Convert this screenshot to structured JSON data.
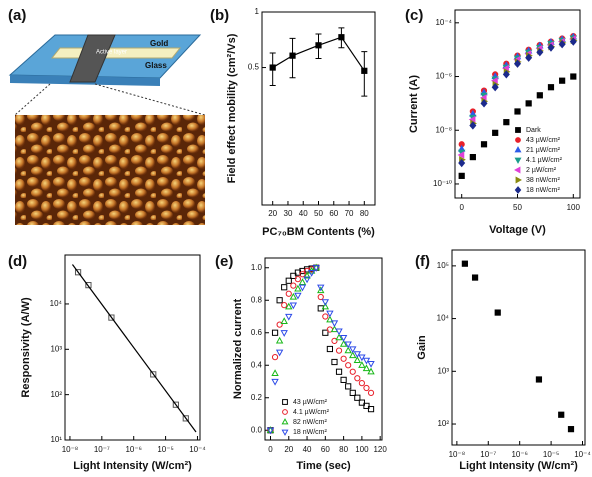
{
  "panel_a": {
    "label": "(a)",
    "active": "Active layer",
    "gold": "Gold",
    "glass": "Glass"
  },
  "chart_data": [
    {
      "type": "scatter",
      "panel_label": "(b)",
      "x_label": "PC₇₀BM Contents (%)",
      "y_label": "Field effect mobility (cm²/Vs)",
      "x": [
        20,
        33,
        50,
        65,
        80
      ],
      "xlim": [
        13,
        87
      ],
      "xticks": [
        20,
        30,
        40,
        50,
        60,
        70,
        80
      ],
      "ylog": true,
      "ylim": [
        0.09,
        1
      ],
      "yticks": [
        0.5,
        1
      ],
      "series": [
        {
          "color": "#000000",
          "marker": "square",
          "filled": true,
          "connect": true,
          "values": [
            0.5,
            0.58,
            0.66,
            0.73,
            0.48
          ],
          "errors": [
            0.1,
            0.14,
            0.1,
            0.09,
            0.13
          ]
        }
      ]
    },
    {
      "type": "scatter",
      "panel_label": "(c)",
      "x_label": "Voltage (V)",
      "y_label": "Current (A)",
      "x": [
        0,
        10,
        20,
        30,
        40,
        50,
        60,
        70,
        80,
        90,
        100
      ],
      "xlim": [
        -6,
        106
      ],
      "xticks": [
        0,
        50,
        100
      ],
      "ylog": true,
      "ylim": [
        3e-11,
        0.0003
      ],
      "yticks": [
        {
          "value": 1e-10,
          "label": "10⁻¹⁰"
        },
        {
          "value": 1e-08,
          "label": "10⁻⁸"
        },
        {
          "value": 1e-06,
          "label": "10⁻⁶"
        },
        {
          "value": 0.0001,
          "label": "10⁻⁴"
        }
      ],
      "legend": "lower right",
      "series": [
        {
          "name": "Dark",
          "color": "#000000",
          "marker": "square",
          "filled": true,
          "values": [
            2e-10,
            1e-09,
            3e-09,
            8e-09,
            2e-08,
            5e-08,
            1e-07,
            2e-07,
            4e-07,
            7e-07,
            1e-06
          ]
        },
        {
          "name": "43 µW/cm²",
          "color": "#e8202a",
          "marker": "circle",
          "filled": true,
          "values": [
            3e-09,
            5e-08,
            3e-07,
            1.2e-06,
            3e-06,
            6e-06,
            1e-05,
            1.5e-05,
            2e-05,
            2.6e-05,
            3.2e-05
          ]
        },
        {
          "name": "21 µW/cm²",
          "color": "#2d5be8",
          "marker": "triangle",
          "filled": true,
          "values": [
            2e-09,
            4e-08,
            2.5e-07,
            1e-06,
            2.6e-06,
            5.5e-06,
            9e-06,
            1.4e-05,
            1.9e-05,
            2.4e-05,
            3e-05
          ]
        },
        {
          "name": "4.1 µW/cm²",
          "color": "#1a9c8c",
          "marker": "down",
          "filled": true,
          "values": [
            1.5e-09,
            3e-08,
            2e-07,
            8e-07,
            2.2e-06,
            4.8e-06,
            8e-06,
            1.2e-05,
            1.7e-05,
            2.2e-05,
            2.7e-05
          ]
        },
        {
          "name": "2 µW/cm²",
          "color": "#e040d8",
          "marker": "left",
          "filled": true,
          "values": [
            1.2e-09,
            2.5e-08,
            1.6e-07,
            7e-07,
            2e-06,
            4.2e-06,
            7e-06,
            1.1e-05,
            1.5e-05,
            2e-05,
            2.5e-05
          ]
        },
        {
          "name": "38 nW/cm²",
          "color": "#8a8a10",
          "marker": "right",
          "filled": true,
          "values": [
            8e-10,
            1.8e-08,
            1.2e-07,
            5e-07,
            1.5e-06,
            3.5e-06,
            6e-06,
            9e-06,
            1.3e-05,
            1.8e-05,
            2.2e-05
          ]
        },
        {
          "name": "18 nW/cm²",
          "color": "#1c2a8c",
          "marker": "diamond",
          "filled": true,
          "values": [
            6e-10,
            1.5e-08,
            1e-07,
            4e-07,
            1.2e-06,
            3e-06,
            5e-06,
            8e-06,
            1.2e-05,
            1.6e-05,
            2e-05
          ]
        }
      ]
    },
    {
      "type": "scatter",
      "panel_label": "(d)",
      "x_label": "Light Intensity (W/cm²)",
      "y_label": "Responsivity (A/W)",
      "x": [
        1.8e-08,
        3.8e-08,
        2e-07,
        4.1e-06,
        2.1e-05,
        4.3e-05
      ],
      "xlog": true,
      "xlim": [
        7e-09,
        0.00012
      ],
      "xticks": [
        {
          "value": 1e-08,
          "label": "10⁻⁸"
        },
        {
          "value": 1e-07,
          "label": "10⁻⁷"
        },
        {
          "value": 1e-06,
          "label": "10⁻⁶"
        },
        {
          "value": 1e-05,
          "label": "10⁻⁵"
        },
        {
          "value": 0.0001,
          "label": "10⁻⁴"
        }
      ],
      "ylog": true,
      "ylim": [
        10,
        120000.0
      ],
      "yticks": [
        {
          "value": 10,
          "label": "10¹"
        },
        {
          "value": 100,
          "label": "10²"
        },
        {
          "value": 1000,
          "label": "10³"
        },
        {
          "value": 10000,
          "label": "10⁴"
        }
      ],
      "series": [
        {
          "color": "#555555",
          "marker": "square",
          "filled": false,
          "values": [
            50000.0,
            26000.0,
            5000.0,
            280.0,
            60.0,
            30.0
          ]
        },
        {
          "color": "#000000",
          "line": true,
          "x": [
            1.2e-08,
            9e-05
          ],
          "values": [
            74000.0,
            15
          ]
        }
      ]
    },
    {
      "type": "scatter",
      "panel_label": "(e)",
      "x_label": "Time (sec)",
      "y_label": "Normalized current",
      "x": [
        0,
        5,
        10,
        15,
        20,
        25,
        30,
        35,
        40,
        45,
        50,
        55,
        60,
        65,
        70,
        75,
        80,
        85,
        90,
        95,
        100,
        105,
        110
      ],
      "xlim": [
        -6,
        122
      ],
      "xticks": [
        0,
        20,
        40,
        60,
        80,
        100,
        120
      ],
      "ylim": [
        -0.06,
        1.06
      ],
      "yticks": [
        {
          "value": 0,
          "label": "0.0"
        },
        {
          "value": 0.2,
          "label": "0.2"
        },
        {
          "value": 0.4,
          "label": "0.4"
        },
        {
          "value": 0.6,
          "label": "0.6"
        },
        {
          "value": 0.8,
          "label": "0.8"
        },
        {
          "value": 1,
          "label": "1.0"
        }
      ],
      "legend": "lower center",
      "series": [
        {
          "name": "43 µW/cm²",
          "color": "#000000",
          "marker": "square",
          "filled": false,
          "values": [
            0,
            0.6,
            0.8,
            0.88,
            0.92,
            0.95,
            0.97,
            0.98,
            0.99,
            0.995,
            1,
            0.75,
            0.6,
            0.5,
            0.42,
            0.36,
            0.31,
            0.27,
            0.23,
            0.2,
            0.17,
            0.15,
            0.13
          ]
        },
        {
          "name": "4.1 µW/cm²",
          "color": "#e8202a",
          "marker": "circle",
          "filled": false,
          "values": [
            0,
            0.45,
            0.65,
            0.77,
            0.84,
            0.89,
            0.93,
            0.96,
            0.98,
            0.99,
            1,
            0.82,
            0.7,
            0.62,
            0.55,
            0.49,
            0.44,
            0.4,
            0.36,
            0.32,
            0.29,
            0.26,
            0.23
          ]
        },
        {
          "name": "82 nW/cm²",
          "color": "#18b818",
          "marker": "triangle",
          "filled": false,
          "values": [
            0,
            0.35,
            0.55,
            0.67,
            0.76,
            0.82,
            0.87,
            0.91,
            0.95,
            0.98,
            1,
            0.86,
            0.76,
            0.68,
            0.62,
            0.57,
            0.53,
            0.49,
            0.46,
            0.43,
            0.4,
            0.38,
            0.36
          ]
        },
        {
          "name": "18 nW/cm²",
          "color": "#2d4be8",
          "marker": "down",
          "filled": false,
          "values": [
            0,
            0.3,
            0.48,
            0.6,
            0.7,
            0.77,
            0.83,
            0.88,
            0.93,
            0.97,
            1,
            0.88,
            0.79,
            0.72,
            0.66,
            0.61,
            0.57,
            0.53,
            0.5,
            0.47,
            0.45,
            0.43,
            0.41
          ]
        }
      ]
    },
    {
      "type": "scatter",
      "panel_label": "(f)",
      "x_label": "Light Intensity (W/cm²)",
      "y_label": "Gain",
      "x": [
        1.8e-08,
        3.8e-08,
        2e-07,
        4.1e-06,
        2.1e-05,
        4.3e-05
      ],
      "xlog": true,
      "xlim": [
        7e-09,
        0.00012
      ],
      "xticks": [
        {
          "value": 1e-08,
          "label": "10⁻⁸"
        },
        {
          "value": 1e-07,
          "label": "10⁻⁷"
        },
        {
          "value": 1e-06,
          "label": "10⁻⁶"
        },
        {
          "value": 1e-05,
          "label": "10⁻⁵"
        },
        {
          "value": 0.0001,
          "label": "10⁻⁴"
        }
      ],
      "ylog": true,
      "ylim": [
        40,
        200000.0
      ],
      "yticks": [
        {
          "value": 100,
          "label": "10²"
        },
        {
          "value": 1000,
          "label": "10³"
        },
        {
          "value": 10000,
          "label": "10⁴"
        },
        {
          "value": 100000,
          "label": "10⁵"
        }
      ],
      "series": [
        {
          "color": "#000000",
          "marker": "square",
          "filled": true,
          "values": [
            110000.0,
            60000.0,
            13000.0,
            700.0,
            150.0,
            80.0
          ]
        }
      ]
    }
  ]
}
